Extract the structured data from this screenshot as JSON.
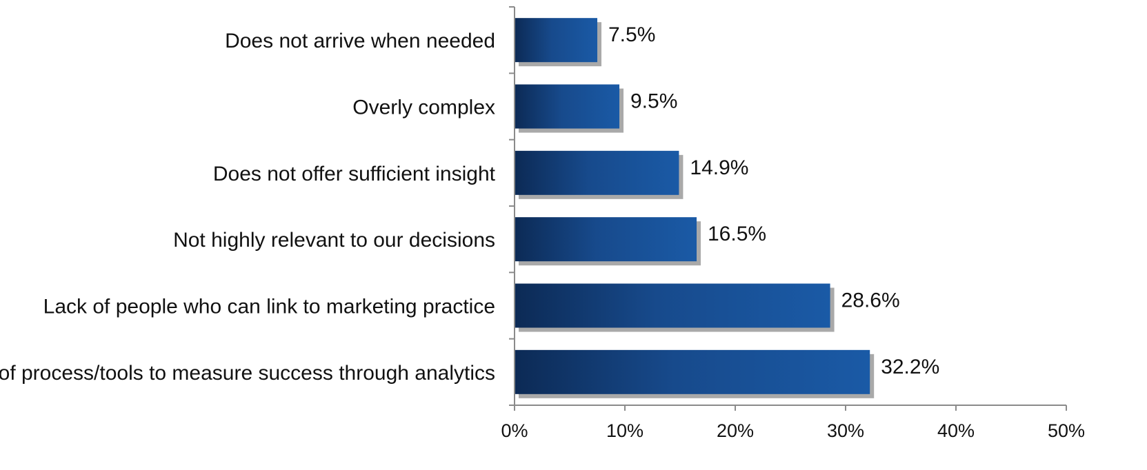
{
  "chart_data": {
    "type": "bar",
    "orientation": "horizontal",
    "categories": [
      "Does not arrive when needed",
      "Overly complex",
      "Does not offer sufficient insight",
      "Not highly relevant to our decisions",
      "Lack of people who can link to marketing practice",
      "Lack of process/tools to measure success through analytics"
    ],
    "values": [
      7.5,
      9.5,
      14.9,
      16.5,
      28.6,
      32.2
    ],
    "value_labels": [
      "7.5%",
      "9.5%",
      "14.9%",
      "16.5%",
      "28.6%",
      "32.2%"
    ],
    "xlim": [
      0,
      50
    ],
    "x_ticks": [
      0,
      10,
      20,
      30,
      40,
      50
    ],
    "x_tick_labels": [
      "0%",
      "10%",
      "20%",
      "30%",
      "40%",
      "50%"
    ],
    "title": "",
    "xlabel": "",
    "ylabel": "",
    "grid": false,
    "legend": "none",
    "colors": {
      "bar_dark": "#0c2a55",
      "bar_light": "#1a5aa6",
      "shadow": "#a9a9a9",
      "axis": "#8a8a8a",
      "text": "#111111"
    }
  }
}
